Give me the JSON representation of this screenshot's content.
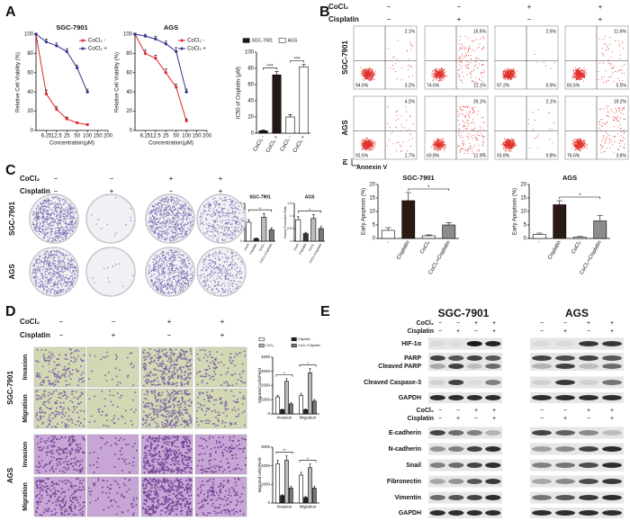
{
  "panel_labels": [
    "A",
    "B",
    "C",
    "D",
    "E"
  ],
  "treatment": {
    "labels": [
      "CoCl₂",
      "Cisplatin"
    ],
    "signs": [
      [
        "−",
        "−",
        "+",
        "+"
      ],
      [
        "−",
        "+",
        "−",
        "+"
      ]
    ]
  },
  "chart_data": [
    {
      "type": "line",
      "title": "SGC-7901",
      "xlabel": "Concentration(μM)",
      "ylabel": "Relative Cell Viability (%)",
      "categories": [
        null,
        "6.25",
        "12.5",
        "25",
        "50",
        "100",
        "150",
        "200"
      ],
      "series": [
        {
          "name": "CoCl₂ -",
          "color": "#e3262b",
          "values": [
            100,
            38,
            22,
            12,
            8,
            6,
            null,
            null
          ],
          "errors": [
            1,
            4,
            3,
            2,
            1,
            1,
            null,
            null
          ]
        },
        {
          "name": "CoCl₂ +",
          "color": "#2e3192",
          "values": [
            100,
            92,
            88,
            82,
            65,
            40,
            null,
            null
          ],
          "errors": [
            1,
            3,
            3,
            3,
            3,
            3,
            null,
            null
          ]
        }
      ],
      "ylim": [
        0,
        100
      ],
      "yticks": [
        0,
        20,
        40,
        60,
        80,
        100
      ],
      "legend": "upper right"
    },
    {
      "type": "line",
      "title": "AGS",
      "xlabel": "Concentration(μM)",
      "ylabel": "Relative Cell Viability (%)",
      "categories": [
        null,
        "6.25",
        "12.5",
        "25",
        "50",
        "100",
        "150",
        "200"
      ],
      "series": [
        {
          "name": "CoCl₂ -",
          "color": "#e3262b",
          "values": [
            100,
            80,
            75,
            60,
            45,
            10,
            null,
            null
          ],
          "errors": [
            1,
            4,
            3,
            4,
            3,
            2,
            null,
            null
          ]
        },
        {
          "name": "CoCl₂ +",
          "color": "#2e3192",
          "values": [
            100,
            98,
            95,
            90,
            82,
            40,
            null,
            null
          ],
          "errors": [
            1,
            2,
            3,
            3,
            4,
            3,
            null,
            null
          ]
        }
      ],
      "ylim": [
        0,
        100
      ],
      "yticks": [
        0,
        20,
        40,
        60,
        80,
        100
      ],
      "legend": "upper right"
    },
    {
      "type": "bar",
      "ylabel": "IC50 of Cisplatin (μM)",
      "categories": [
        "CoCl₂ -",
        "CoCl₂ +",
        "CoCl₂ -",
        "CoCl₂ +"
      ],
      "series": [
        {
          "name": "SGC-7901",
          "color": "#231815",
          "values": [
            3,
            72,
            null,
            null
          ],
          "errors": [
            1,
            4,
            null,
            null
          ]
        },
        {
          "name": "AGS",
          "color": "#ffffff",
          "values": [
            null,
            null,
            20,
            82
          ],
          "errors": [
            null,
            null,
            3,
            3
          ]
        }
      ],
      "ylim": [
        0,
        100
      ],
      "yticks": [
        0,
        20,
        40,
        60,
        80,
        100
      ],
      "legend": "top",
      "annotations": [
        "***",
        "***"
      ]
    },
    {
      "type": "bar",
      "title": "SGC-7901",
      "ylabel": "Early Apoptosis (%)",
      "categories": [
        "-",
        "Cisplatin",
        "CoCl₂",
        "CoCl₂+Cisplatin"
      ],
      "values": [
        3,
        14,
        1,
        5
      ],
      "errors": [
        1,
        3,
        0.3,
        0.8
      ],
      "colors": [
        "#ffffff",
        "#2b1a12",
        "#ffffff",
        "#8c8c8c"
      ],
      "ylim": [
        0,
        20
      ],
      "yticks": [
        0,
        5,
        10,
        15,
        20
      ],
      "annotations": [
        "*"
      ]
    },
    {
      "type": "bar",
      "title": "AGS",
      "ylabel": "Early Apoptosis (%)",
      "categories": [
        "-",
        "Cisplatin",
        "CoCl₂",
        "CoCl₂+Cisplatin"
      ],
      "values": [
        1.5,
        12.5,
        0.5,
        6.5
      ],
      "errors": [
        0.5,
        1.5,
        0.2,
        2
      ],
      "colors": [
        "#ffffff",
        "#2b1a12",
        "#ffffff",
        "#8c8c8c"
      ],
      "ylim": [
        0,
        20
      ],
      "yticks": [
        0,
        5,
        10,
        15,
        20
      ],
      "annotations": [
        "*"
      ]
    },
    {
      "type": "bar",
      "title": "SGC-7901",
      "ylabel": "Colony Formation Rate",
      "categories": [
        "mock",
        "Cisplatin",
        "CoCl₂",
        "CoCl₂+Cisplatin"
      ],
      "values": [
        0.75,
        0.1,
        0.95,
        0.45
      ],
      "errors": [
        0.1,
        0.03,
        0.15,
        0.08
      ],
      "colors": [
        "#ffffff",
        "#333333",
        "#bbbbbb",
        "#777777"
      ],
      "ylim": [
        0,
        1.5
      ],
      "yticks": [
        0,
        0.5,
        1,
        1.5
      ],
      "annotations": [
        "**"
      ]
    },
    {
      "type": "bar",
      "title": "AGS",
      "ylabel": "Colony Formation Rate",
      "categories": [
        "mock",
        "Cisplatin",
        "CoCl₂",
        "CoCl₂+Cisplatin"
      ],
      "values": [
        0.85,
        0.3,
        0.9,
        0.5
      ],
      "errors": [
        0.12,
        0.05,
        0.15,
        0.08
      ],
      "colors": [
        "#ffffff",
        "#333333",
        "#bbbbbb",
        "#777777"
      ],
      "ylim": [
        0,
        1.5
      ],
      "yticks": [
        0,
        0.5,
        1,
        1.5
      ],
      "annotations": [
        "**"
      ]
    },
    {
      "type": "bar",
      "ylabel": "Migrated cells/Field",
      "categories": [
        "Invasion",
        "Migration"
      ],
      "series": [
        {
          "name": "-",
          "color": "#ffffff",
          "values": [
            1200,
            1300
          ],
          "errors": [
            120,
            150
          ]
        },
        {
          "name": "Cisplatin",
          "color": "#222222",
          "values": [
            300,
            300
          ],
          "errors": [
            50,
            60
          ]
        },
        {
          "name": "CoCl₂",
          "color": "#bbbbbb",
          "values": [
            2300,
            2900
          ],
          "errors": [
            200,
            300
          ]
        },
        {
          "name": "CoCl₂+Cisplatin",
          "color": "#777777",
          "values": [
            700,
            900
          ],
          "errors": [
            100,
            120
          ]
        }
      ],
      "ylim": [
        0,
        4000
      ],
      "yticks": [
        0,
        1000,
        2000,
        3000,
        4000
      ],
      "legend": "top",
      "annotations": [
        "*",
        "*"
      ]
    },
    {
      "type": "bar",
      "ylabel": "Migrated cells/Field",
      "categories": [
        "Invasion",
        "Migration"
      ],
      "series": [
        {
          "color": "#ffffff",
          "values": [
            2100,
            1500
          ],
          "errors": [
            200,
            150
          ]
        },
        {
          "color": "#222222",
          "values": [
            400,
            300
          ],
          "errors": [
            60,
            50
          ]
        },
        {
          "color": "#bbbbbb",
          "values": [
            2300,
            1900
          ],
          "errors": [
            250,
            200
          ]
        },
        {
          "color": "#777777",
          "values": [
            800,
            800
          ],
          "errors": [
            100,
            100
          ]
        }
      ],
      "ylim": [
        0,
        3000
      ],
      "yticks": [
        0,
        1000,
        2000,
        3000
      ],
      "annotations": [
        "**",
        "*"
      ]
    }
  ],
  "flow": {
    "cell_lines": [
      "SGC-7901",
      "AGS"
    ],
    "y_axis": "PI",
    "x_axis": "Annexin V",
    "quadrants": [
      [
        [
          "2.1%",
          "94.6%",
          "3.2%"
        ],
        [
          "15.5%",
          "74.6%",
          "11.1%"
        ],
        [
          "2.6%",
          "97.2%",
          "0.9%"
        ],
        [
          "11.6%",
          "83.5%",
          "5.5%"
        ]
      ],
      [
        [
          "4.2%",
          "92.6%",
          "1.7%"
        ],
        [
          "26.1%",
          "60.8%",
          "11.9%"
        ],
        [
          "2.1%",
          "93.8%",
          "0.8%"
        ],
        [
          "19.2%",
          "76.6%",
          "3.8%"
        ]
      ]
    ]
  },
  "colony": {
    "cell_lines": [
      "SGC-7901",
      "AGS"
    ]
  },
  "transwell": {
    "cell_lines": [
      "SGC-7901",
      "AGS"
    ],
    "assays": [
      "Invasion",
      "Migration"
    ]
  },
  "western": {
    "cell_lines": [
      "SGC-7901",
      "AGS"
    ],
    "blocks": [
      [
        "HIF-1α",
        "PARP",
        "Cleaved PARP",
        "Cleaved Caspase-3",
        "GAPDH"
      ],
      [
        "E-cadherin",
        "N-cadherin",
        "Snail",
        "Fibronectin",
        "Vimentin",
        "GAPDH"
      ]
    ]
  }
}
